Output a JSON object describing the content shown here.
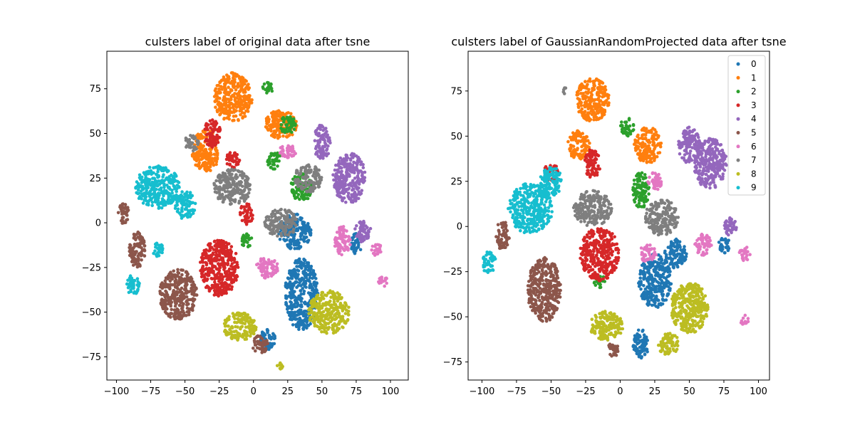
{
  "chart_data": [
    {
      "type": "scatter",
      "title": "culsters label of original data after tsne",
      "xlabel": "",
      "ylabel": "",
      "xlim": [
        -107,
        113
      ],
      "ylim": [
        -88,
        96
      ],
      "xticks": [
        -100,
        -75,
        -50,
        -25,
        0,
        25,
        50,
        75,
        100
      ],
      "yticks": [
        -75,
        -50,
        -25,
        0,
        25,
        50,
        75
      ],
      "legend": false,
      "clusters": [
        {
          "label": "0",
          "color": "#1f77b4",
          "centers": [
            [
              35,
              -40,
              12,
              20
            ],
            [
              30,
              -5,
              12,
              10
            ],
            [
              10,
              -65,
              6,
              6
            ],
            [
              75,
              -12,
              4,
              6
            ]
          ]
        },
        {
          "label": "1",
          "color": "#ff7f0e",
          "centers": [
            [
              -15,
              70,
              14,
              14
            ],
            [
              -35,
              40,
              10,
              12
            ],
            [
              20,
              55,
              12,
              8
            ]
          ]
        },
        {
          "label": "2",
          "color": "#2ca02c",
          "centers": [
            [
              10,
              75,
              4,
              4
            ],
            [
              25,
              55,
              6,
              5
            ],
            [
              35,
              20,
              8,
              8
            ],
            [
              -5,
              -10,
              4,
              4
            ],
            [
              15,
              35,
              5,
              5
            ]
          ]
        },
        {
          "label": "3",
          "color": "#d62728",
          "centers": [
            [
              -25,
              -25,
              14,
              16
            ],
            [
              -30,
              50,
              6,
              8
            ],
            [
              -15,
              35,
              5,
              5
            ],
            [
              -5,
              5,
              5,
              6
            ]
          ]
        },
        {
          "label": "4",
          "color": "#9467bd",
          "centers": [
            [
              70,
              25,
              12,
              14
            ],
            [
              50,
              45,
              6,
              10
            ],
            [
              80,
              -5,
              6,
              6
            ]
          ]
        },
        {
          "label": "5",
          "color": "#8c564b",
          "centers": [
            [
              -55,
              -40,
              14,
              14
            ],
            [
              -85,
              -15,
              6,
              10
            ],
            [
              -95,
              5,
              4,
              6
            ],
            [
              5,
              -68,
              6,
              5
            ]
          ]
        },
        {
          "label": "6",
          "color": "#e377c2",
          "centers": [
            [
              95,
              -33,
              4,
              3
            ],
            [
              65,
              -10,
              6,
              8
            ],
            [
              25,
              40,
              6,
              4
            ],
            [
              10,
              -25,
              8,
              6
            ],
            [
              90,
              -15,
              4,
              4
            ]
          ]
        },
        {
          "label": "7",
          "color": "#7f7f7f",
          "centers": [
            [
              -15,
              20,
              14,
              10
            ],
            [
              20,
              0,
              12,
              8
            ],
            [
              40,
              25,
              10,
              8
            ],
            [
              -45,
              45,
              5,
              5
            ]
          ]
        },
        {
          "label": "8",
          "color": "#bcbd22",
          "centers": [
            [
              55,
              -50,
              15,
              12
            ],
            [
              -10,
              -58,
              12,
              8
            ],
            [
              20,
              -80,
              3,
              2
            ]
          ]
        },
        {
          "label": "9",
          "color": "#17becf",
          "centers": [
            [
              -70,
              20,
              16,
              12
            ],
            [
              -88,
              -35,
              5,
              6
            ],
            [
              -50,
              10,
              8,
              8
            ],
            [
              -70,
              -15,
              4,
              4
            ]
          ]
        }
      ]
    },
    {
      "type": "scatter",
      "title": "culsters label of GaussianRandomProjected data after tsne",
      "xlabel": "",
      "ylabel": "",
      "xlim": [
        -110,
        108
      ],
      "ylim": [
        -85,
        97
      ],
      "xticks": [
        -100,
        -75,
        -50,
        -25,
        0,
        25,
        50,
        75,
        100
      ],
      "yticks": [
        -75,
        -50,
        -25,
        0,
        25,
        50,
        75
      ],
      "legend": true,
      "legend_position": "top-right",
      "clusters": [
        {
          "label": "0",
          "color": "#1f77b4",
          "centers": [
            [
              25,
              -30,
              12,
              15
            ],
            [
              15,
              -65,
              6,
              8
            ],
            [
              40,
              -15,
              8,
              8
            ],
            [
              75,
              -10,
              4,
              5
            ]
          ]
        },
        {
          "label": "1",
          "color": "#ff7f0e",
          "centers": [
            [
              -20,
              70,
              12,
              12
            ],
            [
              -30,
              45,
              8,
              8
            ],
            [
              20,
              45,
              10,
              10
            ]
          ]
        },
        {
          "label": "2",
          "color": "#2ca02c",
          "centers": [
            [
              5,
              55,
              5,
              5
            ],
            [
              15,
              20,
              6,
              10
            ],
            [
              -15,
              -30,
              4,
              4
            ]
          ]
        },
        {
          "label": "3",
          "color": "#d62728",
          "centers": [
            [
              -15,
              -15,
              14,
              15
            ],
            [
              -20,
              35,
              6,
              8
            ],
            [
              -50,
              30,
              5,
              5
            ]
          ]
        },
        {
          "label": "4",
          "color": "#9467bd",
          "centers": [
            [
              65,
              35,
              12,
              14
            ],
            [
              50,
              45,
              8,
              10
            ],
            [
              80,
              0,
              5,
              5
            ]
          ]
        },
        {
          "label": "5",
          "color": "#8c564b",
          "centers": [
            [
              -55,
              -35,
              12,
              18
            ],
            [
              -85,
              -5,
              5,
              8
            ],
            [
              -5,
              -68,
              4,
              4
            ]
          ]
        },
        {
          "label": "6",
          "color": "#e377c2",
          "centers": [
            [
              90,
              -52,
              3,
              3
            ],
            [
              90,
              -15,
              4,
              4
            ],
            [
              60,
              -10,
              6,
              6
            ],
            [
              25,
              25,
              5,
              5
            ],
            [
              20,
              -15,
              6,
              5
            ]
          ]
        },
        {
          "label": "7",
          "color": "#7f7f7f",
          "centers": [
            [
              -20,
              10,
              14,
              10
            ],
            [
              30,
              5,
              12,
              10
            ],
            [
              -40,
              75,
              2,
              2
            ]
          ]
        },
        {
          "label": "8",
          "color": "#bcbd22",
          "centers": [
            [
              50,
              -45,
              14,
              14
            ],
            [
              -10,
              -55,
              12,
              8
            ],
            [
              35,
              -65,
              8,
              6
            ]
          ]
        },
        {
          "label": "9",
          "color": "#17becf",
          "centers": [
            [
              -65,
              10,
              16,
              14
            ],
            [
              -95,
              -20,
              5,
              6
            ],
            [
              -50,
              25,
              8,
              8
            ]
          ]
        }
      ]
    }
  ]
}
